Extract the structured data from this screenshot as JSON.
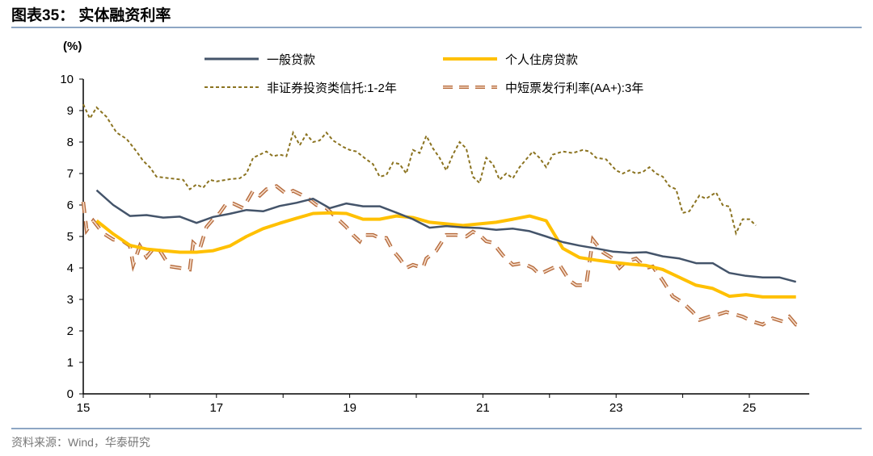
{
  "header": {
    "title": "图表35：  实体融资利率"
  },
  "source": "资料来源：Wind，华泰研究",
  "chart_data": {
    "type": "line",
    "title": "实体融资利率",
    "ylabel": "(%)",
    "xlabel": "",
    "ylim": [
      0,
      10
    ],
    "xlim": [
      15,
      25.9
    ],
    "yticks": [
      "0",
      "1",
      "2",
      "3",
      "4",
      "5",
      "6",
      "7",
      "8",
      "9",
      "10"
    ],
    "xticks": [
      "15",
      "17",
      "19",
      "21",
      "23",
      "25"
    ],
    "legend_position": "top",
    "colors": {
      "general": "#44546a",
      "mortgage": "#ffc000",
      "trust": "#8b7320",
      "cp": "#b5693a"
    },
    "series": [
      {
        "name": "一般贷款",
        "x_start": 15.2,
        "x_step": 0.25,
        "values": [
          6.47,
          6.0,
          5.65,
          5.68,
          5.6,
          5.63,
          5.43,
          5.62,
          5.72,
          5.84,
          5.8,
          5.97,
          6.07,
          6.2,
          5.9,
          6.05,
          5.96,
          5.96,
          5.76,
          5.55,
          5.28,
          5.33,
          5.29,
          5.27,
          5.21,
          5.25,
          5.17,
          5.0,
          4.82,
          4.71,
          4.62,
          4.52,
          4.48,
          4.5,
          4.37,
          4.3,
          4.15,
          4.15,
          3.84,
          3.75,
          3.7,
          3.7,
          3.56
        ]
      },
      {
        "name": "个人住房贷款",
        "x_start": 15.2,
        "x_step": 0.25,
        "values": [
          5.5,
          5.08,
          4.72,
          4.6,
          4.55,
          4.5,
          4.5,
          4.55,
          4.7,
          5.0,
          5.25,
          5.42,
          5.58,
          5.73,
          5.75,
          5.73,
          5.55,
          5.55,
          5.65,
          5.6,
          5.45,
          5.4,
          5.35,
          5.4,
          5.45,
          5.55,
          5.65,
          5.5,
          4.62,
          4.33,
          4.25,
          4.18,
          4.12,
          4.08,
          3.95,
          3.7,
          3.45,
          3.35,
          3.1,
          3.15,
          3.08,
          3.08,
          3.08
        ]
      },
      {
        "name": "非证券投资类信托:1-2年",
        "points": [
          [
            15.0,
            9.2
          ],
          [
            15.1,
            8.75
          ],
          [
            15.2,
            9.1
          ],
          [
            15.35,
            8.8
          ],
          [
            15.5,
            8.3
          ],
          [
            15.65,
            8.1
          ],
          [
            15.8,
            7.7
          ],
          [
            15.9,
            7.4
          ],
          [
            16.0,
            7.2
          ],
          [
            16.1,
            6.9
          ],
          [
            16.3,
            6.85
          ],
          [
            16.5,
            6.8
          ],
          [
            16.6,
            6.5
          ],
          [
            16.7,
            6.65
          ],
          [
            16.8,
            6.55
          ],
          [
            16.9,
            6.8
          ],
          [
            17.0,
            6.75
          ],
          [
            17.2,
            6.82
          ],
          [
            17.35,
            6.85
          ],
          [
            17.45,
            7.0
          ],
          [
            17.55,
            7.5
          ],
          [
            17.65,
            7.6
          ],
          [
            17.75,
            7.7
          ],
          [
            17.85,
            7.55
          ],
          [
            17.95,
            7.6
          ],
          [
            18.05,
            7.55
          ],
          [
            18.15,
            8.3
          ],
          [
            18.25,
            7.9
          ],
          [
            18.35,
            8.25
          ],
          [
            18.45,
            8.0
          ],
          [
            18.55,
            8.05
          ],
          [
            18.65,
            8.3
          ],
          [
            18.75,
            8.05
          ],
          [
            18.9,
            7.85
          ],
          [
            19.0,
            7.75
          ],
          [
            19.1,
            7.7
          ],
          [
            19.25,
            7.45
          ],
          [
            19.35,
            7.3
          ],
          [
            19.45,
            6.9
          ],
          [
            19.55,
            6.95
          ],
          [
            19.65,
            7.35
          ],
          [
            19.75,
            7.3
          ],
          [
            19.85,
            7.0
          ],
          [
            19.95,
            7.75
          ],
          [
            20.05,
            7.65
          ],
          [
            20.15,
            8.2
          ],
          [
            20.25,
            7.8
          ],
          [
            20.35,
            7.5
          ],
          [
            20.45,
            7.1
          ],
          [
            20.55,
            7.6
          ],
          [
            20.65,
            8.0
          ],
          [
            20.75,
            7.8
          ],
          [
            20.85,
            6.9
          ],
          [
            20.95,
            6.7
          ],
          [
            21.05,
            7.5
          ],
          [
            21.15,
            7.3
          ],
          [
            21.25,
            6.8
          ],
          [
            21.35,
            7.0
          ],
          [
            21.45,
            6.85
          ],
          [
            21.55,
            7.2
          ],
          [
            21.65,
            7.45
          ],
          [
            21.75,
            7.7
          ],
          [
            21.85,
            7.5
          ],
          [
            21.95,
            7.2
          ],
          [
            22.05,
            7.6
          ],
          [
            22.2,
            7.7
          ],
          [
            22.35,
            7.65
          ],
          [
            22.5,
            7.75
          ],
          [
            22.6,
            7.7
          ],
          [
            22.7,
            7.5
          ],
          [
            22.85,
            7.45
          ],
          [
            23.0,
            7.1
          ],
          [
            23.1,
            7.0
          ],
          [
            23.2,
            7.1
          ],
          [
            23.3,
            7.0
          ],
          [
            23.4,
            7.05
          ],
          [
            23.5,
            7.2
          ],
          [
            23.6,
            7.0
          ],
          [
            23.7,
            6.9
          ],
          [
            23.8,
            6.6
          ],
          [
            23.9,
            6.5
          ],
          [
            24.0,
            5.75
          ],
          [
            24.1,
            5.8
          ],
          [
            24.25,
            6.3
          ],
          [
            24.35,
            6.2
          ],
          [
            24.5,
            6.4
          ],
          [
            24.6,
            6.0
          ],
          [
            24.7,
            5.95
          ],
          [
            24.8,
            5.1
          ],
          [
            24.9,
            5.55
          ],
          [
            25.0,
            5.55
          ],
          [
            25.1,
            5.35
          ]
        ]
      },
      {
        "name": "中短票发行利率(AA+):3年",
        "points": [
          [
            15.0,
            6.1
          ],
          [
            15.05,
            5.2
          ],
          [
            15.15,
            5.5
          ],
          [
            15.3,
            5.1
          ],
          [
            15.45,
            4.9
          ],
          [
            15.6,
            4.85
          ],
          [
            15.7,
            4.7
          ],
          [
            15.75,
            4.1
          ],
          [
            15.85,
            4.7
          ],
          [
            15.95,
            4.35
          ],
          [
            16.05,
            4.6
          ],
          [
            16.15,
            4.55
          ],
          [
            16.3,
            4.05
          ],
          [
            16.45,
            4.0
          ],
          [
            16.6,
            3.95
          ],
          [
            16.65,
            4.8
          ],
          [
            16.75,
            4.6
          ],
          [
            16.85,
            5.3
          ],
          [
            16.95,
            5.55
          ],
          [
            17.05,
            5.75
          ],
          [
            17.15,
            6.05
          ],
          [
            17.25,
            6.05
          ],
          [
            17.4,
            5.9
          ],
          [
            17.55,
            6.45
          ],
          [
            17.65,
            6.3
          ],
          [
            17.75,
            6.5
          ],
          [
            17.9,
            6.6
          ],
          [
            18.05,
            6.35
          ],
          [
            18.15,
            6.45
          ],
          [
            18.35,
            6.25
          ],
          [
            18.5,
            6.0
          ],
          [
            18.65,
            5.9
          ],
          [
            18.8,
            5.6
          ],
          [
            18.95,
            5.3
          ],
          [
            19.05,
            5.05
          ],
          [
            19.15,
            4.85
          ],
          [
            19.2,
            5.05
          ],
          [
            19.35,
            5.05
          ],
          [
            19.45,
            4.95
          ],
          [
            19.55,
            4.95
          ],
          [
            19.65,
            4.55
          ],
          [
            19.75,
            4.3
          ],
          [
            19.85,
            4.0
          ],
          [
            19.95,
            4.1
          ],
          [
            20.1,
            4.0
          ],
          [
            20.15,
            4.3
          ],
          [
            20.3,
            4.55
          ],
          [
            20.45,
            5.05
          ],
          [
            20.6,
            5.05
          ],
          [
            20.75,
            5.0
          ],
          [
            20.85,
            5.15
          ],
          [
            20.95,
            5.05
          ],
          [
            21.05,
            4.85
          ],
          [
            21.15,
            4.8
          ],
          [
            21.3,
            4.4
          ],
          [
            21.45,
            4.1
          ],
          [
            21.6,
            4.15
          ],
          [
            21.75,
            4.0
          ],
          [
            21.85,
            3.8
          ],
          [
            22.0,
            3.95
          ],
          [
            22.15,
            4.1
          ],
          [
            22.3,
            3.6
          ],
          [
            22.4,
            3.45
          ],
          [
            22.55,
            3.45
          ],
          [
            22.65,
            4.9
          ],
          [
            22.8,
            4.5
          ],
          [
            22.95,
            4.3
          ],
          [
            23.05,
            4.0
          ],
          [
            23.15,
            4.2
          ],
          [
            23.3,
            4.3
          ],
          [
            23.45,
            4.0
          ],
          [
            23.55,
            4.05
          ],
          [
            23.7,
            3.6
          ],
          [
            23.85,
            3.1
          ],
          [
            24.0,
            2.9
          ],
          [
            24.15,
            2.6
          ],
          [
            24.25,
            2.35
          ],
          [
            24.4,
            2.45
          ],
          [
            24.5,
            2.5
          ],
          [
            24.65,
            2.6
          ],
          [
            24.75,
            2.55
          ],
          [
            24.9,
            2.45
          ],
          [
            25.05,
            2.3
          ],
          [
            25.2,
            2.2
          ],
          [
            25.35,
            2.4
          ],
          [
            25.5,
            2.3
          ],
          [
            25.6,
            2.45
          ],
          [
            25.7,
            2.2
          ],
          [
            25.8,
            2.15
          ]
        ]
      }
    ]
  }
}
